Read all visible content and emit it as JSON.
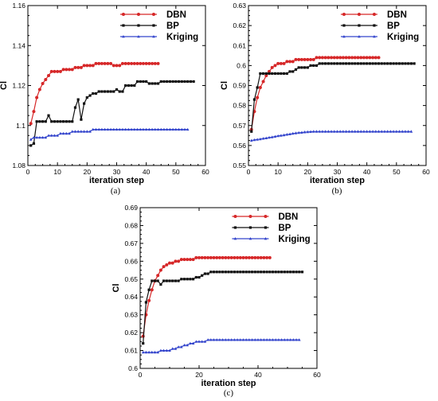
{
  "chart_data": [
    {
      "type": "line",
      "panel_label": "(a)",
      "xlabel": "iteration step",
      "ylabel": "Cl",
      "xlim": [
        0,
        60
      ],
      "ylim": [
        1.08,
        1.16
      ],
      "x_ticks": [
        "0",
        "10",
        "20",
        "30",
        "40",
        "50",
        "60"
      ],
      "y_ticks": [
        "1.08",
        "1.1",
        "1.12",
        "1.14",
        "1.16"
      ],
      "legend_position": "top-right",
      "series": [
        {
          "name": "DBN",
          "color": "#d62728",
          "marker": "circle",
          "x": [
            1,
            2,
            3,
            4,
            5,
            6,
            7,
            8,
            9,
            10,
            11,
            12,
            13,
            14,
            15,
            16,
            17,
            18,
            19,
            20,
            21,
            22,
            23,
            24,
            25,
            26,
            27,
            28,
            29,
            30,
            31,
            32,
            33,
            34,
            35,
            36,
            37,
            38,
            39,
            40,
            41,
            42,
            43,
            44
          ],
          "y": [
            1.101,
            1.107,
            1.114,
            1.118,
            1.121,
            1.123,
            1.125,
            1.127,
            1.127,
            1.127,
            1.127,
            1.128,
            1.128,
            1.128,
            1.128,
            1.129,
            1.129,
            1.129,
            1.13,
            1.13,
            1.13,
            1.13,
            1.131,
            1.131,
            1.131,
            1.131,
            1.131,
            1.131,
            1.13,
            1.13,
            1.13,
            1.131,
            1.131,
            1.131,
            1.131,
            1.131,
            1.131,
            1.131,
            1.131,
            1.131,
            1.131,
            1.131,
            1.131,
            1.131
          ]
        },
        {
          "name": "BP",
          "color": "#111111",
          "marker": "square",
          "x": [
            1,
            2,
            3,
            4,
            5,
            6,
            7,
            8,
            9,
            10,
            11,
            12,
            13,
            14,
            15,
            16,
            17,
            18,
            19,
            20,
            21,
            22,
            23,
            24,
            25,
            26,
            27,
            28,
            29,
            30,
            31,
            32,
            33,
            34,
            35,
            36,
            37,
            38,
            39,
            40,
            41,
            42,
            43,
            44,
            45,
            46,
            47,
            48,
            49,
            50,
            51,
            52,
            53,
            54,
            55,
            56
          ],
          "y": [
            1.09,
            1.091,
            1.102,
            1.102,
            1.102,
            1.102,
            1.105,
            1.102,
            1.102,
            1.102,
            1.102,
            1.102,
            1.102,
            1.102,
            1.102,
            1.109,
            1.113,
            1.103,
            1.111,
            1.114,
            1.115,
            1.116,
            1.116,
            1.117,
            1.117,
            1.117,
            1.117,
            1.117,
            1.117,
            1.118,
            1.117,
            1.117,
            1.12,
            1.12,
            1.12,
            1.12,
            1.122,
            1.122,
            1.122,
            1.122,
            1.121,
            1.121,
            1.121,
            1.121,
            1.122,
            1.122,
            1.122,
            1.122,
            1.122,
            1.122,
            1.122,
            1.122,
            1.122,
            1.122,
            1.122,
            1.122
          ]
        },
        {
          "name": "Kriging",
          "color": "#3344cc",
          "marker": "triangle",
          "x": [
            1,
            2,
            3,
            4,
            5,
            6,
            7,
            8,
            9,
            10,
            11,
            12,
            13,
            14,
            15,
            16,
            17,
            18,
            19,
            20,
            21,
            22,
            23,
            24,
            25,
            26,
            27,
            28,
            29,
            30,
            31,
            32,
            33,
            34,
            35,
            36,
            37,
            38,
            39,
            40,
            41,
            42,
            43,
            44,
            45,
            46,
            47,
            48,
            49,
            50,
            51,
            52,
            53,
            54
          ],
          "y": [
            1.093,
            1.094,
            1.094,
            1.094,
            1.094,
            1.094,
            1.095,
            1.095,
            1.095,
            1.095,
            1.096,
            1.096,
            1.096,
            1.096,
            1.097,
            1.097,
            1.097,
            1.097,
            1.097,
            1.097,
            1.097,
            1.098,
            1.098,
            1.098,
            1.098,
            1.098,
            1.098,
            1.098,
            1.098,
            1.098,
            1.098,
            1.098,
            1.098,
            1.098,
            1.098,
            1.098,
            1.098,
            1.098,
            1.098,
            1.098,
            1.098,
            1.098,
            1.098,
            1.098,
            1.098,
            1.098,
            1.098,
            1.098,
            1.098,
            1.098,
            1.098,
            1.098,
            1.098,
            1.098
          ]
        }
      ]
    },
    {
      "type": "line",
      "panel_label": "(b)",
      "xlabel": "iteration step",
      "ylabel": "Cl",
      "xlim": [
        0,
        60
      ],
      "ylim": [
        0.55,
        0.63
      ],
      "x_ticks": [
        "0",
        "10",
        "20",
        "30",
        "40",
        "50",
        "60"
      ],
      "y_ticks": [
        "0.55",
        "0.56",
        "0.57",
        "0.58",
        "0.59",
        "0.6",
        "0.61",
        "0.62",
        "0.63"
      ],
      "legend_position": "top-right",
      "series": [
        {
          "name": "DBN",
          "color": "#d62728",
          "marker": "circle",
          "x": [
            1,
            2,
            3,
            4,
            5,
            6,
            7,
            8,
            9,
            10,
            11,
            12,
            13,
            14,
            15,
            16,
            17,
            18,
            19,
            20,
            21,
            22,
            23,
            24,
            25,
            26,
            27,
            28,
            29,
            30,
            31,
            32,
            33,
            34,
            35,
            36,
            37,
            38,
            39,
            40,
            41,
            42,
            43,
            44
          ],
          "y": [
            0.568,
            0.577,
            0.584,
            0.589,
            0.592,
            0.595,
            0.597,
            0.599,
            0.6,
            0.601,
            0.601,
            0.601,
            0.602,
            0.602,
            0.602,
            0.603,
            0.603,
            0.603,
            0.603,
            0.603,
            0.603,
            0.603,
            0.604,
            0.604,
            0.604,
            0.604,
            0.604,
            0.604,
            0.604,
            0.604,
            0.604,
            0.604,
            0.604,
            0.604,
            0.604,
            0.604,
            0.604,
            0.604,
            0.604,
            0.604,
            0.604,
            0.604,
            0.604,
            0.604
          ]
        },
        {
          "name": "BP",
          "color": "#111111",
          "marker": "square",
          "x": [
            1,
            2,
            3,
            4,
            5,
            6,
            7,
            8,
            9,
            10,
            11,
            12,
            13,
            14,
            15,
            16,
            17,
            18,
            19,
            20,
            21,
            22,
            23,
            24,
            25,
            26,
            27,
            28,
            29,
            30,
            31,
            32,
            33,
            34,
            35,
            36,
            37,
            38,
            39,
            40,
            41,
            42,
            43,
            44,
            45,
            46,
            47,
            48,
            49,
            50,
            51,
            52,
            53,
            54,
            55,
            56
          ],
          "y": [
            0.567,
            0.583,
            0.589,
            0.596,
            0.596,
            0.596,
            0.596,
            0.596,
            0.596,
            0.596,
            0.596,
            0.596,
            0.596,
            0.597,
            0.597,
            0.598,
            0.599,
            0.599,
            0.599,
            0.599,
            0.6,
            0.6,
            0.6,
            0.601,
            0.601,
            0.601,
            0.601,
            0.601,
            0.601,
            0.601,
            0.601,
            0.601,
            0.601,
            0.601,
            0.601,
            0.601,
            0.601,
            0.601,
            0.601,
            0.601,
            0.601,
            0.601,
            0.601,
            0.601,
            0.601,
            0.601,
            0.601,
            0.601,
            0.601,
            0.601,
            0.601,
            0.601,
            0.601,
            0.601,
            0.601,
            0.601
          ]
        },
        {
          "name": "Kriging",
          "color": "#3344cc",
          "marker": "triangle",
          "x": [
            1,
            2,
            3,
            4,
            5,
            6,
            7,
            8,
            9,
            10,
            11,
            12,
            13,
            14,
            15,
            16,
            17,
            18,
            19,
            20,
            21,
            22,
            23,
            24,
            25,
            26,
            27,
            28,
            29,
            30,
            31,
            32,
            33,
            34,
            35,
            36,
            37,
            38,
            39,
            40,
            41,
            42,
            43,
            44,
            45,
            46,
            47,
            48,
            49,
            50,
            51,
            52,
            53,
            54,
            55
          ],
          "y": [
            0.5625,
            0.5628,
            0.563,
            0.5632,
            0.5635,
            0.5637,
            0.564,
            0.5642,
            0.5645,
            0.5648,
            0.565,
            0.5652,
            0.5655,
            0.5657,
            0.566,
            0.5662,
            0.5664,
            0.5665,
            0.5667,
            0.5668,
            0.5669,
            0.567,
            0.567,
            0.567,
            0.567,
            0.567,
            0.567,
            0.567,
            0.567,
            0.567,
            0.567,
            0.567,
            0.567,
            0.567,
            0.567,
            0.567,
            0.567,
            0.567,
            0.567,
            0.567,
            0.567,
            0.567,
            0.567,
            0.567,
            0.567,
            0.567,
            0.567,
            0.567,
            0.567,
            0.567,
            0.567,
            0.567,
            0.567,
            0.567,
            0.567
          ]
        }
      ]
    },
    {
      "type": "line",
      "panel_label": "(c)",
      "xlabel": "iteration step",
      "ylabel": "Cl",
      "xlim": [
        0,
        60
      ],
      "ylim": [
        0.6,
        0.69
      ],
      "x_ticks": [
        "0",
        "20",
        "40",
        "60"
      ],
      "y_ticks": [
        "0.6",
        "0.61",
        "0.62",
        "0.63",
        "0.64",
        "0.65",
        "0.66",
        "0.67",
        "0.68",
        "0.69"
      ],
      "legend_position": "top-right",
      "series": [
        {
          "name": "DBN",
          "color": "#d62728",
          "marker": "circle",
          "x": [
            1,
            2,
            3,
            4,
            5,
            6,
            7,
            8,
            9,
            10,
            11,
            12,
            13,
            14,
            15,
            16,
            17,
            18,
            19,
            20,
            21,
            22,
            23,
            24,
            25,
            26,
            27,
            28,
            29,
            30,
            31,
            32,
            33,
            34,
            35,
            36,
            37,
            38,
            39,
            40,
            41,
            42,
            43,
            44
          ],
          "y": [
            0.618,
            0.63,
            0.638,
            0.644,
            0.649,
            0.652,
            0.655,
            0.657,
            0.658,
            0.659,
            0.659,
            0.66,
            0.66,
            0.661,
            0.661,
            0.661,
            0.661,
            0.661,
            0.662,
            0.662,
            0.662,
            0.662,
            0.662,
            0.662,
            0.662,
            0.662,
            0.662,
            0.662,
            0.662,
            0.662,
            0.662,
            0.662,
            0.662,
            0.662,
            0.662,
            0.662,
            0.662,
            0.662,
            0.662,
            0.662,
            0.662,
            0.662,
            0.662,
            0.662
          ]
        },
        {
          "name": "BP",
          "color": "#111111",
          "marker": "square",
          "x": [
            1,
            2,
            3,
            4,
            5,
            6,
            7,
            8,
            9,
            10,
            11,
            12,
            13,
            14,
            15,
            16,
            17,
            18,
            19,
            20,
            21,
            22,
            23,
            24,
            25,
            26,
            27,
            28,
            29,
            30,
            31,
            32,
            33,
            34,
            35,
            36,
            37,
            38,
            39,
            40,
            41,
            42,
            43,
            44,
            45,
            46,
            47,
            48,
            49,
            50,
            51,
            52,
            53,
            54,
            55
          ],
          "y": [
            0.614,
            0.637,
            0.644,
            0.649,
            0.649,
            0.649,
            0.647,
            0.649,
            0.649,
            0.649,
            0.649,
            0.649,
            0.649,
            0.65,
            0.65,
            0.65,
            0.65,
            0.65,
            0.651,
            0.651,
            0.652,
            0.653,
            0.653,
            0.654,
            0.654,
            0.654,
            0.654,
            0.654,
            0.654,
            0.654,
            0.654,
            0.654,
            0.654,
            0.654,
            0.654,
            0.654,
            0.654,
            0.654,
            0.654,
            0.654,
            0.654,
            0.654,
            0.654,
            0.654,
            0.654,
            0.654,
            0.654,
            0.654,
            0.654,
            0.654,
            0.654,
            0.654,
            0.654,
            0.654,
            0.654
          ]
        },
        {
          "name": "Kriging",
          "color": "#3344cc",
          "marker": "triangle",
          "x": [
            1,
            2,
            3,
            4,
            5,
            6,
            7,
            8,
            9,
            10,
            11,
            12,
            13,
            14,
            15,
            16,
            17,
            18,
            19,
            20,
            21,
            22,
            23,
            24,
            25,
            26,
            27,
            28,
            29,
            30,
            31,
            32,
            33,
            34,
            35,
            36,
            37,
            38,
            39,
            40,
            41,
            42,
            43,
            44,
            45,
            46,
            47,
            48,
            49,
            50,
            51,
            52,
            53,
            54
          ],
          "y": [
            0.609,
            0.609,
            0.609,
            0.609,
            0.609,
            0.609,
            0.61,
            0.61,
            0.61,
            0.61,
            0.611,
            0.611,
            0.612,
            0.612,
            0.613,
            0.613,
            0.614,
            0.614,
            0.615,
            0.615,
            0.615,
            0.615,
            0.616,
            0.616,
            0.616,
            0.616,
            0.616,
            0.616,
            0.616,
            0.616,
            0.616,
            0.616,
            0.616,
            0.616,
            0.616,
            0.616,
            0.616,
            0.616,
            0.616,
            0.616,
            0.616,
            0.616,
            0.616,
            0.616,
            0.616,
            0.616,
            0.616,
            0.616,
            0.616,
            0.616,
            0.616,
            0.616,
            0.616,
            0.616
          ]
        }
      ]
    }
  ]
}
